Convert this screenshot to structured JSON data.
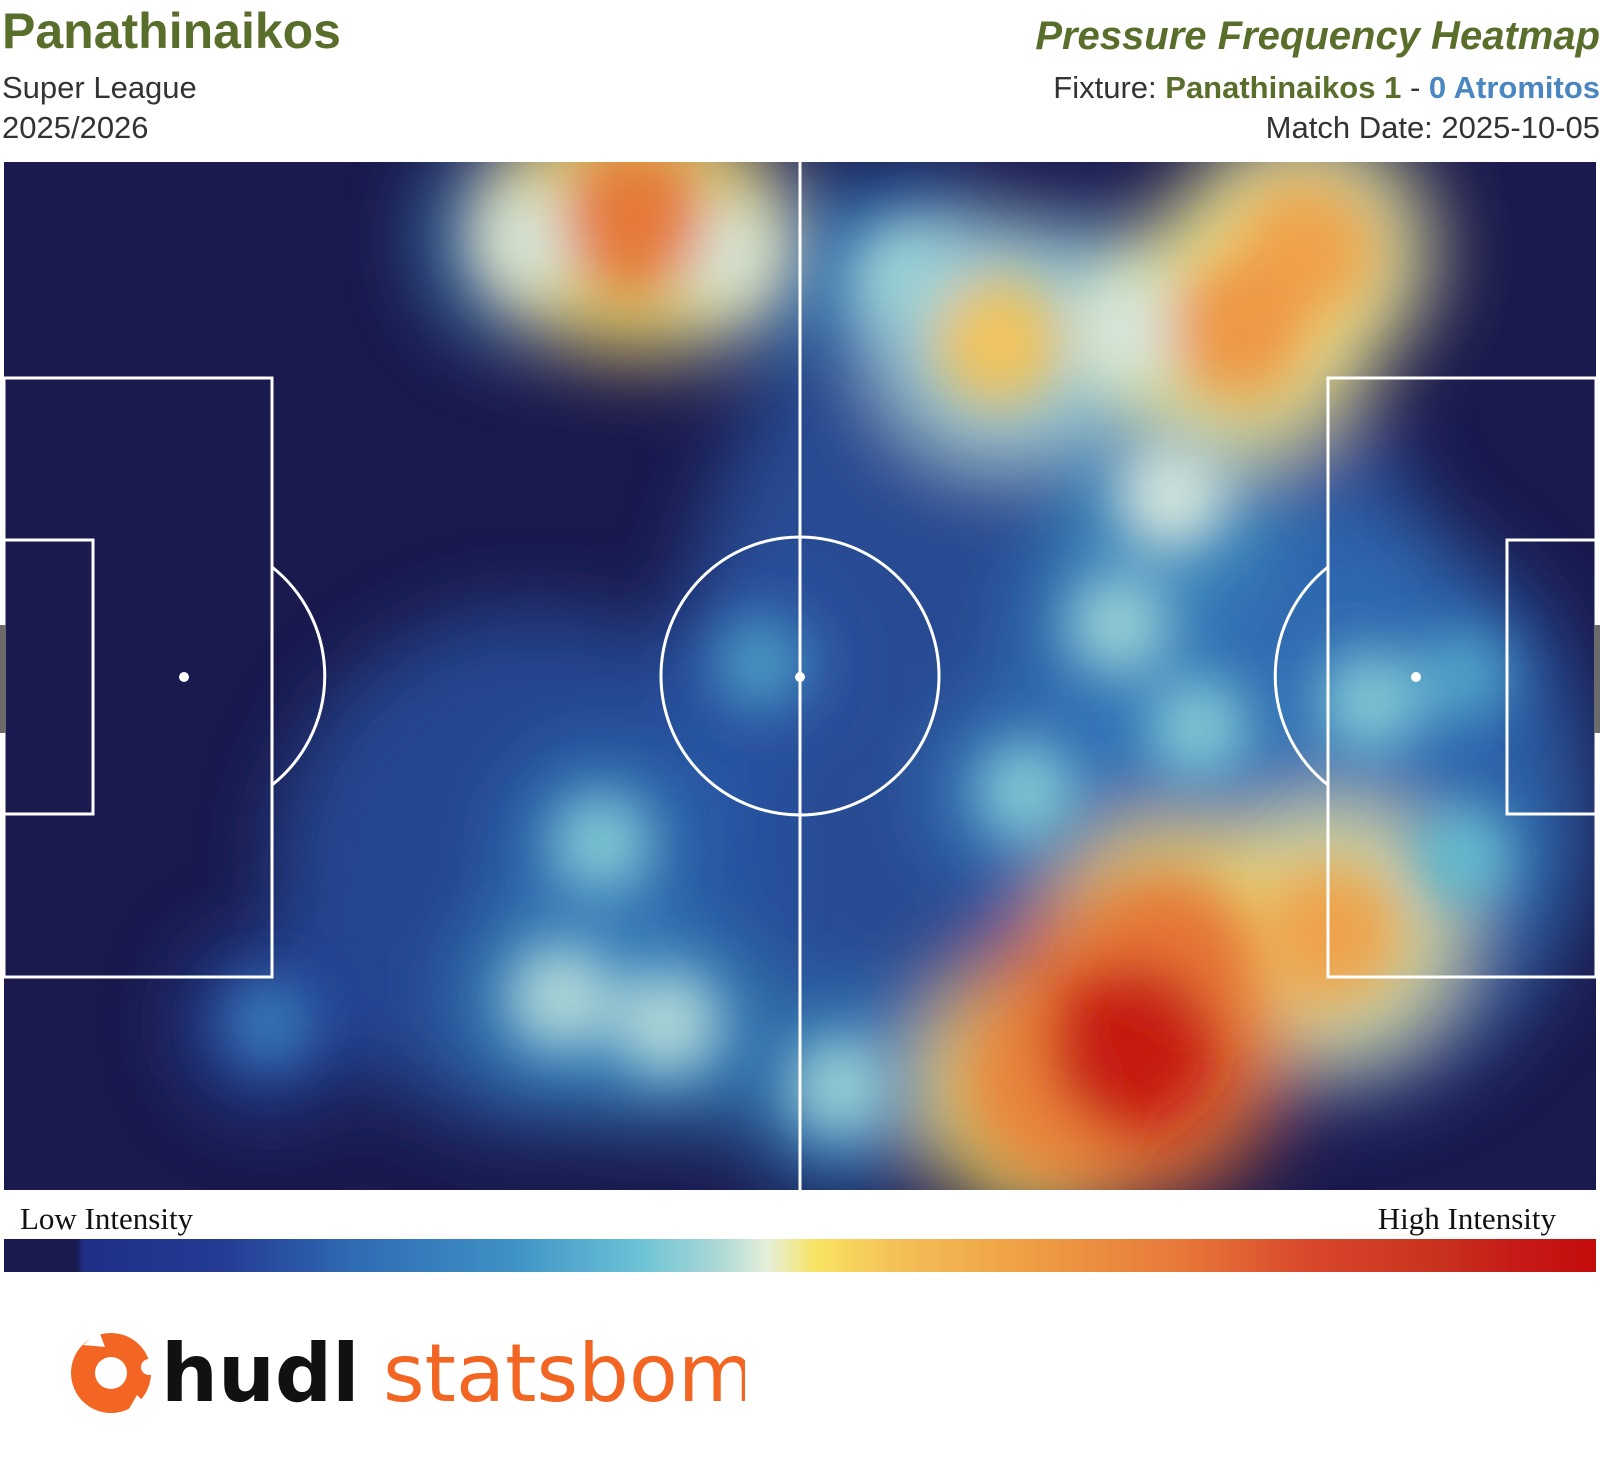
{
  "header": {
    "team": "Panathinaikos",
    "league": "Super League",
    "season": "2025/2026",
    "title": "Pressure Frequency Heatmap",
    "fixture_prefix": "Fixture: ",
    "home_team": "Panathinaikos",
    "home_score": "1",
    "separator": " - ",
    "away_score": "0",
    "away_team": "Atromitos",
    "match_date_label": "Match Date: ",
    "match_date": "2025-10-05"
  },
  "legend": {
    "low_label": "Low Intensity",
    "high_label": "High Intensity"
  },
  "branding": {
    "primary": "hudl",
    "secondary": "statsbomb",
    "icon": "hudl-logo-icon",
    "brand_color": "#f26522"
  },
  "colors": {
    "team": "#5a6e2c",
    "away": "#4a86c0",
    "pitch_lines": "#ffffff",
    "background": "#1a1a4e"
  },
  "chart_data": {
    "type": "heatmap",
    "title": "Pressure Frequency Heatmap",
    "pitch": {
      "length": 120,
      "width": 80,
      "units": "StatsBomb yards"
    },
    "intensity_scale": "relative (0 = lowest, 1 = highest)",
    "hotspots": [
      {
        "x": 47.5,
        "y": 4.5,
        "intensity": 0.78
      },
      {
        "x": 40,
        "y": 6,
        "intensity": 0.45
      },
      {
        "x": 54,
        "y": 7,
        "intensity": 0.45
      },
      {
        "x": 68,
        "y": 9,
        "intensity": 0.4
      },
      {
        "x": 75,
        "y": 14,
        "intensity": 0.62
      },
      {
        "x": 98,
        "y": 7,
        "intensity": 0.7
      },
      {
        "x": 93,
        "y": 13,
        "intensity": 0.72
      },
      {
        "x": 85,
        "y": 13,
        "intensity": 0.45
      },
      {
        "x": 88,
        "y": 26,
        "intensity": 0.45
      },
      {
        "x": 84,
        "y": 36,
        "intensity": 0.4
      },
      {
        "x": 90,
        "y": 44,
        "intensity": 0.38
      },
      {
        "x": 103,
        "y": 42,
        "intensity": 0.38
      },
      {
        "x": 77,
        "y": 49,
        "intensity": 0.38
      },
      {
        "x": 45,
        "y": 53,
        "intensity": 0.38
      },
      {
        "x": 42,
        "y": 65,
        "intensity": 0.42
      },
      {
        "x": 50,
        "y": 67,
        "intensity": 0.42
      },
      {
        "x": 85,
        "y": 69,
        "intensity": 1.0
      },
      {
        "x": 79,
        "y": 72,
        "intensity": 0.75
      },
      {
        "x": 88,
        "y": 62,
        "intensity": 0.78
      },
      {
        "x": 100,
        "y": 60,
        "intensity": 0.7
      },
      {
        "x": 63,
        "y": 72,
        "intensity": 0.4
      },
      {
        "x": 110,
        "y": 54,
        "intensity": 0.35
      },
      {
        "x": 57,
        "y": 39,
        "intensity": 0.28
      },
      {
        "x": 110,
        "y": 40,
        "intensity": 0.3
      },
      {
        "x": 20,
        "y": 67,
        "intensity": 0.22
      }
    ]
  }
}
